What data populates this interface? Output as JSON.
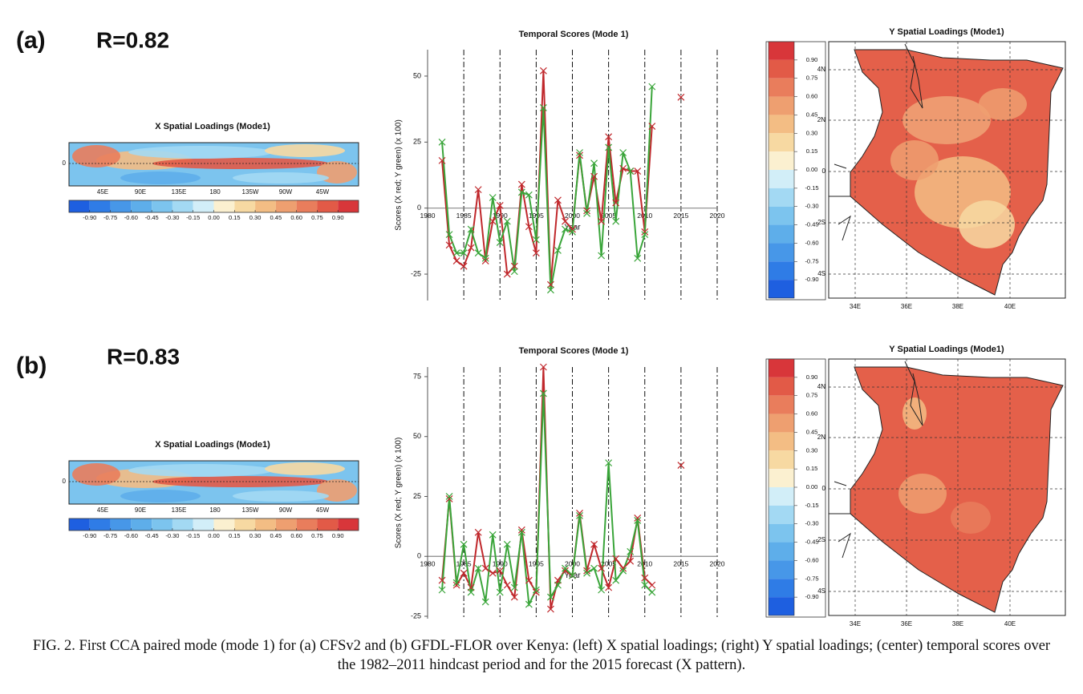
{
  "panels": [
    {
      "label": "(a)",
      "r": "R=0.82",
      "x_map": {
        "title": "X Spatial Loadings (Mode1)",
        "lon_labels": [
          "45E",
          "90E",
          "135E",
          "180",
          "135W",
          "90W",
          "45W"
        ],
        "lat_labels": [
          "0"
        ],
        "colorbar_ticks": [
          {
            "value": -0.9,
            "label": "-0.90"
          },
          {
            "value": -0.75,
            "label": "-0.75"
          },
          {
            "value": -0.6,
            "label": "-0.60"
          },
          {
            "value": -0.45,
            "label": "-0.45"
          },
          {
            "value": -0.3,
            "label": "-0.30"
          },
          {
            "value": -0.15,
            "label": "-0.15"
          },
          {
            "value": 0,
            "label": "0.00"
          },
          {
            "value": 0.15,
            "label": "0.15"
          },
          {
            "value": 0.3,
            "label": "0.30"
          },
          {
            "value": 0.45,
            "label": "0.45"
          },
          {
            "value": 0.6,
            "label": "0.60"
          },
          {
            "value": 0.75,
            "label": "0.75"
          },
          {
            "value": 0.9,
            "label": "0.90"
          }
        ]
      },
      "y_map": {
        "title": "Y Spatial Loadings (Mode1)",
        "lon_labels": [
          "34E",
          "36E",
          "38E",
          "40E"
        ],
        "lat_labels": [
          "4N",
          "2N",
          "0",
          "2S",
          "4S"
        ],
        "colorbar_ticks": [
          {
            "value": 0.9,
            "label": "0.90"
          },
          {
            "value": 0.75,
            "label": "0.75"
          },
          {
            "value": 0.6,
            "label": "0.60"
          },
          {
            "value": 0.45,
            "label": "0.45"
          },
          {
            "value": 0.3,
            "label": "0.30"
          },
          {
            "value": 0.15,
            "label": "0.15"
          },
          {
            "value": 0,
            "label": "0.00"
          },
          {
            "value": -0.15,
            "label": "-0.15"
          },
          {
            "value": -0.3,
            "label": "-0.30"
          },
          {
            "value": -0.45,
            "label": "-0.45"
          },
          {
            "value": -0.6,
            "label": "-0.60"
          },
          {
            "value": -0.75,
            "label": "-0.75"
          },
          {
            "value": -0.9,
            "label": "-0.90"
          }
        ]
      }
    },
    {
      "label": "(b)",
      "r": "R=0.83",
      "x_map": {
        "title": "X Spatial Loadings (Mode1)",
        "lon_labels": [
          "45E",
          "90E",
          "135E",
          "180",
          "135W",
          "90W",
          "45W"
        ],
        "lat_labels": [
          "0"
        ],
        "colorbar_ticks": [
          {
            "value": -0.9,
            "label": "-0.90"
          },
          {
            "value": -0.75,
            "label": "-0.75"
          },
          {
            "value": -0.6,
            "label": "-0.60"
          },
          {
            "value": -0.45,
            "label": "-0.45"
          },
          {
            "value": -0.3,
            "label": "-0.30"
          },
          {
            "value": -0.15,
            "label": "-0.15"
          },
          {
            "value": 0,
            "label": "0.00"
          },
          {
            "value": 0.15,
            "label": "0.15"
          },
          {
            "value": 0.3,
            "label": "0.30"
          },
          {
            "value": 0.45,
            "label": "0.45"
          },
          {
            "value": 0.6,
            "label": "0.60"
          },
          {
            "value": 0.75,
            "label": "0.75"
          },
          {
            "value": 0.9,
            "label": "0.90"
          }
        ]
      },
      "y_map": {
        "title": "Y Spatial Loadings (Mode1)",
        "lon_labels": [
          "34E",
          "36E",
          "38E",
          "40E"
        ],
        "lat_labels": [
          "4N",
          "2N",
          "0",
          "2S",
          "4S"
        ],
        "colorbar_ticks": [
          {
            "value": 0.9,
            "label": "0.90"
          },
          {
            "value": 0.75,
            "label": "0.75"
          },
          {
            "value": 0.6,
            "label": "0.60"
          },
          {
            "value": 0.45,
            "label": "0.45"
          },
          {
            "value": 0.3,
            "label": "0.30"
          },
          {
            "value": 0.15,
            "label": "0.15"
          },
          {
            "value": 0,
            "label": "0.00"
          },
          {
            "value": -0.15,
            "label": "-0.15"
          },
          {
            "value": -0.3,
            "label": "-0.30"
          },
          {
            "value": -0.45,
            "label": "-0.45"
          },
          {
            "value": -0.6,
            "label": "-0.60"
          },
          {
            "value": -0.75,
            "label": "-0.75"
          },
          {
            "value": -0.9,
            "label": "-0.90"
          }
        ]
      }
    }
  ],
  "colorbar_colors": [
    "#1e5fe0",
    "#2f7ce6",
    "#4797e8",
    "#5eaeea",
    "#7cc4ee",
    "#a3d9f3",
    "#d2eef8",
    "#fbf0d0",
    "#f7d9a2",
    "#f3bd84",
    "#ee9f70",
    "#e97d5c",
    "#e25a47",
    "#d8363a"
  ],
  "chart_data": [
    {
      "type": "line",
      "title": "Temporal Scores (Mode 1)",
      "xlabel": "Year",
      "ylabel": "Scores (X red; Y green) (x 100)",
      "x": [
        1982,
        1983,
        1984,
        1985,
        1986,
        1987,
        1988,
        1989,
        1990,
        1991,
        1992,
        1993,
        1994,
        1995,
        1996,
        1997,
        1998,
        1999,
        2000,
        2001,
        2002,
        2003,
        2004,
        2005,
        2006,
        2007,
        2008,
        2009,
        2010,
        2011
      ],
      "xlim": [
        1980,
        2020
      ],
      "xticks": [
        1980,
        1985,
        1990,
        1995,
        2000,
        2005,
        2010,
        2015,
        2020
      ],
      "ylim": [
        -35,
        60
      ],
      "yticks": [
        -25,
        0,
        25,
        50
      ],
      "series": [
        {
          "color": "#c0282c",
          "values": [
            18,
            -14,
            -20,
            -22,
            -15,
            7,
            -20,
            -5,
            1,
            -25,
            -22,
            9,
            -7,
            -17,
            52,
            -29,
            3,
            -5,
            -8,
            20,
            -1,
            12,
            -5,
            27,
            2,
            15,
            14,
            14,
            -9,
            31
          ]
        },
        {
          "color": "#3aa53a",
          "values": [
            25,
            -10,
            -17,
            -17,
            -8,
            -17,
            -19,
            4,
            -13,
            -5,
            -24,
            6,
            5,
            -12,
            38,
            -31,
            -16,
            -8,
            -9,
            21,
            -2,
            17,
            -18,
            23,
            -5,
            21,
            14,
            -19,
            -10,
            46
          ]
        }
      ],
      "forecast": {
        "x": 2015,
        "value": 42,
        "color": "#c0282c"
      }
    },
    {
      "type": "line",
      "title": "Temporal Scores (Mode 1)",
      "xlabel": "Year",
      "ylabel": "Scores (X red; Y green) (x 100)",
      "x": [
        1982,
        1983,
        1984,
        1985,
        1986,
        1987,
        1988,
        1989,
        1990,
        1991,
        1992,
        1993,
        1994,
        1995,
        1996,
        1997,
        1998,
        1999,
        2000,
        2001,
        2002,
        2003,
        2004,
        2005,
        2006,
        2007,
        2008,
        2009,
        2010,
        2011
      ],
      "xlim": [
        1980,
        2020
      ],
      "xticks": [
        1980,
        1985,
        1990,
        1995,
        2000,
        2005,
        2010,
        2015,
        2020
      ],
      "ylim": [
        -26,
        79
      ],
      "yticks": [
        -25,
        0,
        25,
        50,
        75
      ],
      "series": [
        {
          "color": "#c0282c",
          "values": [
            -10,
            24,
            -12,
            -7,
            -13,
            10,
            -5,
            -7,
            -6,
            -12,
            -17,
            11,
            -10,
            -15,
            79,
            -22,
            -10,
            -6,
            -8,
            18,
            -6,
            5,
            -5,
            -13,
            -1,
            -5,
            -2,
            16,
            -9,
            -12
          ]
        },
        {
          "color": "#3aa53a",
          "values": [
            -14,
            25,
            -11,
            5,
            -15,
            -5,
            -19,
            9,
            -15,
            5,
            -13,
            10,
            -20,
            -14,
            68,
            -17,
            -12,
            -5,
            -8,
            17,
            -7,
            -5,
            -14,
            39,
            -10,
            -6,
            2,
            15,
            -12,
            -15
          ]
        }
      ],
      "forecast": {
        "x": 2015,
        "value": 38,
        "color": "#c0282c"
      }
    }
  ],
  "caption": "FIG. 2. First CCA paired mode (mode 1) for (a) CFSv2 and (b) GFDL-FLOR over Kenya: (left) X spatial loadings; (right) Y spatial loadings; (center) temporal scores over the 1982–2011 hindcast period and for the 2015 forecast (X pattern)."
}
